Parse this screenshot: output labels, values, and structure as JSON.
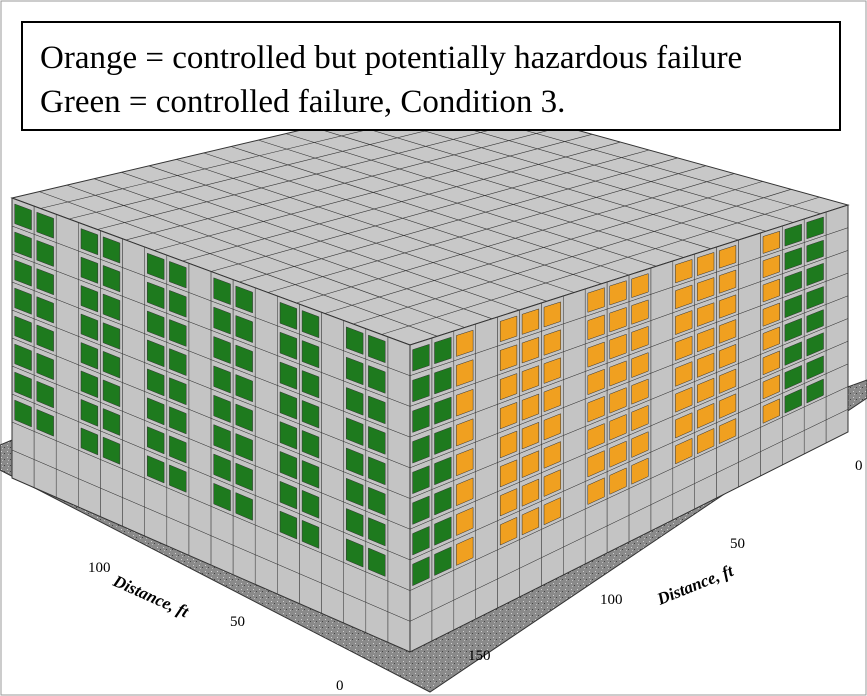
{
  "legend": {
    "lines": [
      "Orange = controlled but potentially hazardous failure",
      "Green = controlled failure, Condition 3."
    ]
  },
  "axes": {
    "left": {
      "label": "Distance, ft",
      "ticks": [
        "100",
        "50",
        "0"
      ]
    },
    "right": {
      "label": "Distance, ft",
      "ticks": [
        "0",
        "50",
        "100",
        "150"
      ]
    }
  }
}
